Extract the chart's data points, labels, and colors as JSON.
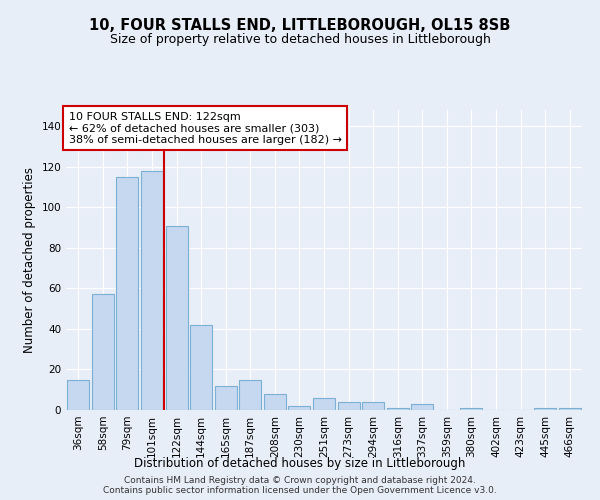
{
  "title": "10, FOUR STALLS END, LITTLEBOROUGH, OL15 8SB",
  "subtitle": "Size of property relative to detached houses in Littleborough",
  "xlabel": "Distribution of detached houses by size in Littleborough",
  "ylabel": "Number of detached properties",
  "categories": [
    "36sqm",
    "58sqm",
    "79sqm",
    "101sqm",
    "122sqm",
    "144sqm",
    "165sqm",
    "187sqm",
    "208sqm",
    "230sqm",
    "251sqm",
    "273sqm",
    "294sqm",
    "316sqm",
    "337sqm",
    "359sqm",
    "380sqm",
    "402sqm",
    "423sqm",
    "445sqm",
    "466sqm"
  ],
  "values": [
    15,
    57,
    115,
    118,
    91,
    42,
    12,
    15,
    8,
    2,
    6,
    4,
    4,
    1,
    3,
    0,
    1,
    0,
    0,
    1,
    1
  ],
  "bar_color": "#c5d8f0",
  "bar_edge_color": "#7bafd4",
  "vline_x_index": 4,
  "vline_color": "#cc0000",
  "annotation_text": "10 FOUR STALLS END: 122sqm\n← 62% of detached houses are smaller (303)\n38% of semi-detached houses are larger (182) →",
  "annotation_box_color": "#ffffff",
  "annotation_box_edge": "#cc0000",
  "ylim": [
    0,
    148
  ],
  "yticks": [
    0,
    20,
    40,
    60,
    80,
    100,
    120,
    140
  ],
  "footer": "Contains HM Land Registry data © Crown copyright and database right 2024.\nContains public sector information licensed under the Open Government Licence v3.0.",
  "bg_color": "#e8eef8",
  "plot_bg_color": "#e8eef8",
  "grid_color": "#ffffff",
  "title_fontsize": 10.5,
  "subtitle_fontsize": 9,
  "xlabel_fontsize": 8.5,
  "ylabel_fontsize": 8.5,
  "tick_fontsize": 7.5,
  "footer_fontsize": 6.5
}
